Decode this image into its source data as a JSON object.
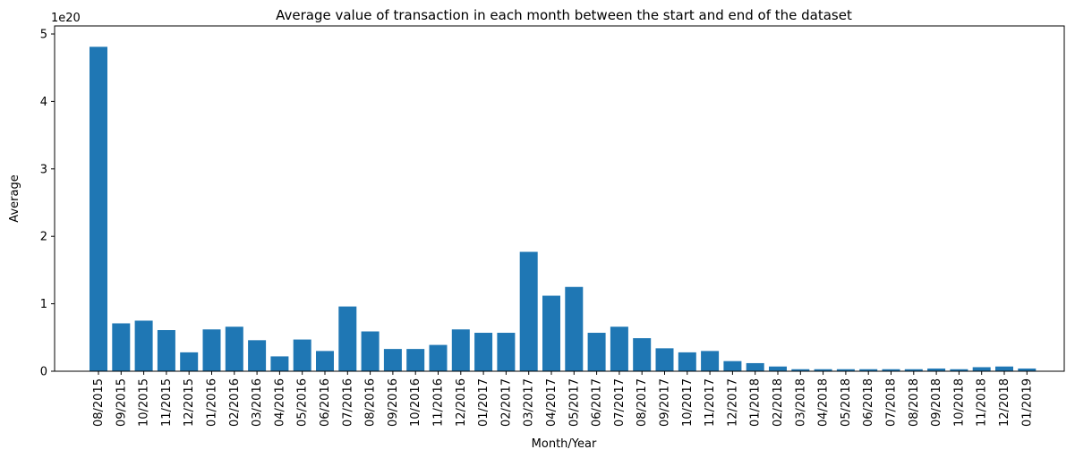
{
  "chart_data": {
    "type": "bar",
    "title": "Average value of transaction in each month between the start and end of the dataset",
    "xlabel": "Month/Year",
    "ylabel": "Average",
    "y_offset_label": "1e20",
    "ylim": [
      0,
      5
    ],
    "yticks": [
      "0",
      "1",
      "2",
      "3",
      "4",
      "5"
    ],
    "bar_color": "#1f77b4",
    "grid": false,
    "categories": [
      "08/2015",
      "09/2015",
      "10/2015",
      "11/2015",
      "12/2015",
      "01/2016",
      "02/2016",
      "03/2016",
      "04/2016",
      "05/2016",
      "06/2016",
      "07/2016",
      "08/2016",
      "09/2016",
      "10/2016",
      "11/2016",
      "12/2016",
      "01/2017",
      "02/2017",
      "03/2017",
      "04/2017",
      "05/2017",
      "06/2017",
      "07/2017",
      "08/2017",
      "09/2017",
      "10/2017",
      "11/2017",
      "12/2017",
      "01/2018",
      "02/2018",
      "03/2018",
      "04/2018",
      "05/2018",
      "06/2018",
      "07/2018",
      "08/2018",
      "09/2018",
      "10/2018",
      "11/2018",
      "12/2018",
      "01/2019"
    ],
    "values": [
      4.81,
      0.71,
      0.75,
      0.61,
      0.28,
      0.62,
      0.66,
      0.46,
      0.22,
      0.47,
      0.3,
      0.96,
      0.59,
      0.33,
      0.33,
      0.39,
      0.62,
      0.57,
      0.57,
      1.77,
      1.12,
      1.25,
      0.57,
      0.66,
      0.49,
      0.34,
      0.28,
      0.3,
      0.15,
      0.12,
      0.07,
      0.03,
      0.03,
      0.03,
      0.03,
      0.03,
      0.03,
      0.04,
      0.03,
      0.06,
      0.07,
      0.04
    ]
  }
}
